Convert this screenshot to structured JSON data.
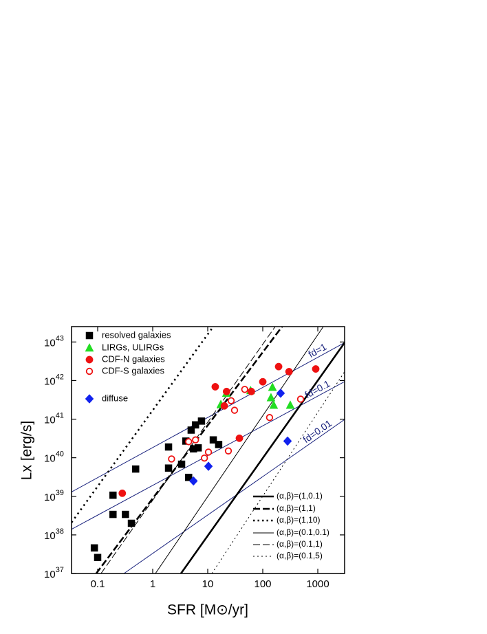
{
  "chart_data": {
    "type": "scatter",
    "xlabel": "SFR [M⊙/yr]",
    "ylabel": "Lx [erg/s]",
    "xscale": "log",
    "yscale": "log",
    "xlim": [
      0.0335,
      3070
    ],
    "ylim": [
      1e+37,
      2.5e+43
    ],
    "xticks": [
      0.1,
      1,
      10,
      100,
      1000
    ],
    "yticks": [
      {
        "value": 1e+37,
        "label": "10",
        "exp": "37"
      },
      {
        "value": 1e+38,
        "label": "10",
        "exp": "38"
      },
      {
        "value": 1e+39,
        "label": "10",
        "exp": "39"
      },
      {
        "value": 1e+40,
        "label": "10",
        "exp": "40"
      },
      {
        "value": 1e+41,
        "label": "10",
        "exp": "41"
      },
      {
        "value": 1e+42,
        "label": "10",
        "exp": "42"
      },
      {
        "value": 1e+43,
        "label": "10",
        "exp": "43"
      }
    ],
    "legend": "upper left",
    "series": [
      {
        "name": "resolved galaxies",
        "marker": "square",
        "color": "#000000",
        "filled": true,
        "x": [
          0.087,
          0.1,
          0.19,
          0.19,
          0.32,
          0.41,
          0.49,
          1.94,
          1.94,
          3.35,
          4.0,
          4.5,
          5.0,
          5.5,
          6.0,
          6.7,
          7.7,
          12.6,
          15.8
        ],
        "values": [
          4.6e+37,
          2.6e+37,
          1.07e+39,
          3.4e+38,
          3.4e+38,
          2e+38,
          5.1e+39,
          1.9e+40,
          5.4e+39,
          6.8e+39,
          2.7e+40,
          3.1e+39,
          5.2e+40,
          1.7e+40,
          7.1e+40,
          1.8e+40,
          8.9e+40,
          2.9e+40,
          2.2e+40
        ]
      },
      {
        "name": "LIRGs, ULIRGs",
        "marker": "triangle",
        "color": "#22dd22",
        "filled": true,
        "x": [
          17.3,
          21.8,
          60,
          150,
          141,
          158,
          316
        ],
        "values": [
          2.4e+41,
          4.7e+41,
          5.5e+41,
          6.7e+41,
          3.6e+41,
          2.3e+41,
          2.3e+41
        ]
      },
      {
        "name": "CDF-N galaxies",
        "marker": "circle",
        "color": "#ee1111",
        "filled": true,
        "x": [
          0.28,
          13.7,
          22,
          20,
          37.6,
          62,
          100,
          194,
          300,
          917
        ],
        "values": [
          1.2e+39,
          6.9e+41,
          5.2e+41,
          2.2e+41,
          3.2e+40,
          5.2e+41,
          9.3e+41,
          2.3e+42,
          1.7e+42,
          2e+42
        ]
      },
      {
        "name": "CDF-S galaxies",
        "marker": "circle",
        "color": "#ee1111",
        "filled": false,
        "x": [
          2.2,
          4.5,
          6.0,
          8.7,
          10.3,
          23.7,
          26.6,
          30.7,
          47,
          133,
          487
        ],
        "values": [
          9.3e+39,
          2.6e+40,
          2.9e+40,
          9.8e+39,
          1.4e+40,
          1.5e+40,
          3e+41,
          1.7e+41,
          5.9e+41,
          1.1e+41,
          3.3e+41
        ]
      },
      {
        "name": "diffuse",
        "marker": "diamond",
        "color": "#1122ee",
        "filled": true,
        "x": [
          5.5,
          10.3,
          211,
          282
        ],
        "values": [
          2.5e+39,
          6e+39,
          4.7e+41,
          2.7e+40
        ]
      }
    ],
    "lines": [
      {
        "label": "fd=1",
        "color": "#1a237e",
        "weight": "thin",
        "dash": "solid",
        "x": [
          0.0335,
          3070
        ],
        "values": [
          1.3e+39,
          9.6e+42
        ]
      },
      {
        "label": "fd=0.1",
        "color": "#1a237e",
        "weight": "thin",
        "dash": "solid",
        "x": [
          0.0335,
          3070
        ],
        "values": [
          1.4e+38,
          9.4e+41
        ]
      },
      {
        "label": "fd=0.01",
        "color": "#1a237e",
        "weight": "thin",
        "dash": "solid",
        "x": [
          0.3,
          3070
        ],
        "values": [
          1e+37,
          9.8e+40
        ]
      },
      {
        "name": "(α,β)=(1,0.1)",
        "color": "#000000",
        "weight": "bold",
        "dash": "solid",
        "x": [
          3.26,
          3070
        ],
        "values": [
          1e+37,
          9.6e+42
        ]
      },
      {
        "name": "(α,β)=(1,1)",
        "color": "#000000",
        "weight": "bold",
        "dash": "dashed",
        "x": [
          0.094,
          224
        ],
        "values": [
          1e+37,
          2.5e+43
        ]
      },
      {
        "name": "(α,β)=(1,10)",
        "color": "#000000",
        "weight": "bold",
        "dash": "dotted",
        "x": [
          0.0335,
          12.6
        ],
        "values": [
          2.1e+38,
          2.5e+43
        ]
      },
      {
        "name": "(α,β)=(0.1,0.1)",
        "color": "#000000",
        "weight": "thin",
        "dash": "solid",
        "x": [
          1.12,
          1260
        ],
        "values": [
          1e+37,
          2.5e+43
        ]
      },
      {
        "name": "(α,β)=(0.1,1)",
        "color": "#000000",
        "weight": "thin",
        "dash": "dashed",
        "x": [
          0.115,
          168
        ],
        "values": [
          1e+37,
          2.5e+43
        ]
      },
      {
        "name": "(α,β)=(0.1,5)",
        "color": "#000000",
        "weight": "thin",
        "dash": "dotted",
        "x": [
          11.9,
          3070
        ],
        "values": [
          1e+37,
          1.7e+42
        ]
      }
    ]
  }
}
